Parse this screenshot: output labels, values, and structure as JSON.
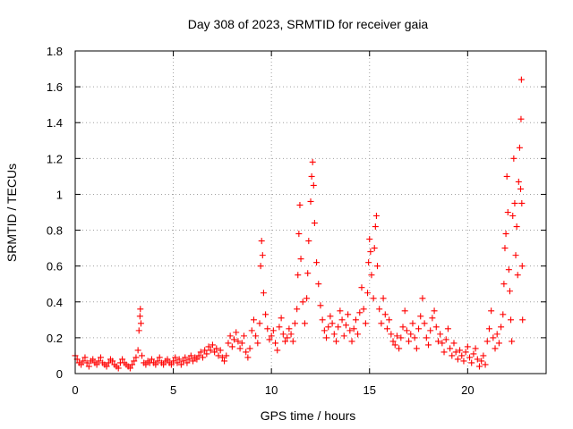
{
  "chart_data": {
    "type": "scatter",
    "title": "Day 308 of 2023, SRMTID for receiver gaia",
    "xlabel": "GPS time / hours",
    "ylabel": "SRMTID / TECUs",
    "xlim": [
      0,
      24
    ],
    "ylim": [
      0,
      1.8
    ],
    "x_ticks": [
      0,
      5,
      10,
      15,
      20
    ],
    "x_tick_labels": [
      "0",
      "5",
      "10",
      "15",
      "20"
    ],
    "y_ticks": [
      0,
      0.2,
      0.4,
      0.6,
      0.8,
      1.0,
      1.2,
      1.4,
      1.6,
      1.8
    ],
    "y_tick_labels": [
      "0",
      "0.2",
      "0.4",
      "0.6",
      "0.8",
      "1",
      "1.2",
      "1.4",
      "1.6",
      "1.8"
    ],
    "grid": true,
    "marker": "plus",
    "color": "#ff0000",
    "series": [
      {
        "name": "SRMTID",
        "points": [
          [
            0.0,
            0.1
          ],
          [
            0.1,
            0.08
          ],
          [
            0.2,
            0.06
          ],
          [
            0.3,
            0.05
          ],
          [
            0.4,
            0.07
          ],
          [
            0.5,
            0.09
          ],
          [
            0.6,
            0.06
          ],
          [
            0.7,
            0.04
          ],
          [
            0.8,
            0.07
          ],
          [
            0.9,
            0.08
          ],
          [
            1.0,
            0.06
          ],
          [
            1.1,
            0.05
          ],
          [
            1.2,
            0.07
          ],
          [
            1.3,
            0.09
          ],
          [
            1.4,
            0.06
          ],
          [
            1.5,
            0.05
          ],
          [
            1.6,
            0.04
          ],
          [
            1.7,
            0.06
          ],
          [
            1.8,
            0.08
          ],
          [
            1.9,
            0.07
          ],
          [
            2.0,
            0.05
          ],
          [
            2.1,
            0.04
          ],
          [
            2.2,
            0.03
          ],
          [
            2.3,
            0.06
          ],
          [
            2.4,
            0.08
          ],
          [
            2.5,
            0.06
          ],
          [
            2.6,
            0.05
          ],
          [
            2.7,
            0.04
          ],
          [
            2.8,
            0.03
          ],
          [
            2.9,
            0.05
          ],
          [
            3.0,
            0.07
          ],
          [
            3.1,
            0.09
          ],
          [
            3.2,
            0.13
          ],
          [
            3.25,
            0.24
          ],
          [
            3.3,
            0.32
          ],
          [
            3.32,
            0.36
          ],
          [
            3.35,
            0.28
          ],
          [
            3.4,
            0.1
          ],
          [
            3.5,
            0.06
          ],
          [
            3.6,
            0.05
          ],
          [
            3.7,
            0.07
          ],
          [
            3.8,
            0.06
          ],
          [
            3.9,
            0.08
          ],
          [
            4.0,
            0.06
          ],
          [
            4.1,
            0.05
          ],
          [
            4.2,
            0.07
          ],
          [
            4.3,
            0.09
          ],
          [
            4.4,
            0.06
          ],
          [
            4.5,
            0.05
          ],
          [
            4.6,
            0.07
          ],
          [
            4.7,
            0.08
          ],
          [
            4.8,
            0.06
          ],
          [
            4.9,
            0.05
          ],
          [
            5.0,
            0.07
          ],
          [
            5.1,
            0.09
          ],
          [
            5.2,
            0.06
          ],
          [
            5.3,
            0.08
          ],
          [
            5.4,
            0.05
          ],
          [
            5.5,
            0.07
          ],
          [
            5.6,
            0.09
          ],
          [
            5.7,
            0.06
          ],
          [
            5.8,
            0.08
          ],
          [
            5.9,
            0.1
          ],
          [
            6.0,
            0.07
          ],
          [
            6.1,
            0.09
          ],
          [
            6.2,
            0.08
          ],
          [
            6.3,
            0.1
          ],
          [
            6.4,
            0.12
          ],
          [
            6.5,
            0.09
          ],
          [
            6.6,
            0.13
          ],
          [
            6.7,
            0.11
          ],
          [
            6.8,
            0.15
          ],
          [
            6.9,
            0.13
          ],
          [
            7.0,
            0.16
          ],
          [
            7.1,
            0.12
          ],
          [
            7.2,
            0.14
          ],
          [
            7.3,
            0.1
          ],
          [
            7.4,
            0.13
          ],
          [
            7.5,
            0.09
          ],
          [
            7.6,
            0.07
          ],
          [
            7.7,
            0.1
          ],
          [
            7.8,
            0.17
          ],
          [
            7.9,
            0.21
          ],
          [
            8.0,
            0.15
          ],
          [
            8.1,
            0.19
          ],
          [
            8.2,
            0.23
          ],
          [
            8.3,
            0.18
          ],
          [
            8.4,
            0.14
          ],
          [
            8.5,
            0.17
          ],
          [
            8.6,
            0.21
          ],
          [
            8.7,
            0.12
          ],
          [
            8.8,
            0.09
          ],
          [
            8.9,
            0.14
          ],
          [
            9.0,
            0.24
          ],
          [
            9.1,
            0.3
          ],
          [
            9.2,
            0.21
          ],
          [
            9.3,
            0.17
          ],
          [
            9.4,
            0.28
          ],
          [
            9.45,
            0.6
          ],
          [
            9.5,
            0.74
          ],
          [
            9.55,
            0.66
          ],
          [
            9.6,
            0.45
          ],
          [
            9.7,
            0.33
          ],
          [
            9.8,
            0.25
          ],
          [
            9.9,
            0.19
          ],
          [
            10.0,
            0.21
          ],
          [
            10.1,
            0.24
          ],
          [
            10.2,
            0.17
          ],
          [
            10.3,
            0.13
          ],
          [
            10.4,
            0.26
          ],
          [
            10.5,
            0.31
          ],
          [
            10.6,
            0.22
          ],
          [
            10.7,
            0.18
          ],
          [
            10.8,
            0.2
          ],
          [
            10.9,
            0.25
          ],
          [
            11.0,
            0.22
          ],
          [
            11.1,
            0.18
          ],
          [
            11.2,
            0.28
          ],
          [
            11.3,
            0.36
          ],
          [
            11.35,
            0.55
          ],
          [
            11.4,
            0.78
          ],
          [
            11.45,
            0.94
          ],
          [
            11.5,
            0.64
          ],
          [
            11.6,
            0.4
          ],
          [
            11.7,
            0.28
          ],
          [
            11.8,
            0.42
          ],
          [
            11.85,
            0.56
          ],
          [
            11.9,
            0.74
          ],
          [
            12.0,
            0.96
          ],
          [
            12.05,
            1.1
          ],
          [
            12.1,
            1.18
          ],
          [
            12.15,
            1.05
          ],
          [
            12.2,
            0.84
          ],
          [
            12.3,
            0.62
          ],
          [
            12.4,
            0.5
          ],
          [
            12.5,
            0.38
          ],
          [
            12.6,
            0.3
          ],
          [
            12.7,
            0.24
          ],
          [
            12.8,
            0.2
          ],
          [
            12.9,
            0.26
          ],
          [
            13.0,
            0.32
          ],
          [
            13.1,
            0.28
          ],
          [
            13.2,
            0.22
          ],
          [
            13.3,
            0.18
          ],
          [
            13.4,
            0.26
          ],
          [
            13.5,
            0.35
          ],
          [
            13.6,
            0.3
          ],
          [
            13.7,
            0.21
          ],
          [
            13.8,
            0.27
          ],
          [
            13.9,
            0.33
          ],
          [
            14.0,
            0.24
          ],
          [
            14.1,
            0.18
          ],
          [
            14.2,
            0.25
          ],
          [
            14.3,
            0.3
          ],
          [
            14.4,
            0.22
          ],
          [
            14.5,
            0.34
          ],
          [
            14.6,
            0.48
          ],
          [
            14.7,
            0.36
          ],
          [
            14.8,
            0.28
          ],
          [
            14.9,
            0.45
          ],
          [
            14.95,
            0.62
          ],
          [
            15.0,
            0.75
          ],
          [
            15.05,
            0.68
          ],
          [
            15.1,
            0.55
          ],
          [
            15.2,
            0.42
          ],
          [
            15.25,
            0.7
          ],
          [
            15.3,
            0.82
          ],
          [
            15.35,
            0.88
          ],
          [
            15.4,
            0.6
          ],
          [
            15.5,
            0.36
          ],
          [
            15.6,
            0.28
          ],
          [
            15.7,
            0.42
          ],
          [
            15.8,
            0.33
          ],
          [
            15.9,
            0.25
          ],
          [
            16.0,
            0.3
          ],
          [
            16.1,
            0.22
          ],
          [
            16.2,
            0.18
          ],
          [
            16.3,
            0.16
          ],
          [
            16.4,
            0.21
          ],
          [
            16.5,
            0.14
          ],
          [
            16.6,
            0.2
          ],
          [
            16.7,
            0.26
          ],
          [
            16.8,
            0.35
          ],
          [
            16.9,
            0.24
          ],
          [
            17.0,
            0.18
          ],
          [
            17.1,
            0.22
          ],
          [
            17.2,
            0.28
          ],
          [
            17.3,
            0.2
          ],
          [
            17.4,
            0.14
          ],
          [
            17.5,
            0.25
          ],
          [
            17.6,
            0.32
          ],
          [
            17.7,
            0.42
          ],
          [
            17.8,
            0.28
          ],
          [
            17.9,
            0.2
          ],
          [
            18.0,
            0.16
          ],
          [
            18.1,
            0.24
          ],
          [
            18.2,
            0.31
          ],
          [
            18.3,
            0.35
          ],
          [
            18.4,
            0.26
          ],
          [
            18.5,
            0.18
          ],
          [
            18.6,
            0.22
          ],
          [
            18.7,
            0.17
          ],
          [
            18.8,
            0.12
          ],
          [
            18.9,
            0.19
          ],
          [
            19.0,
            0.25
          ],
          [
            19.1,
            0.14
          ],
          [
            19.2,
            0.1
          ],
          [
            19.3,
            0.17
          ],
          [
            19.4,
            0.12
          ],
          [
            19.5,
            0.08
          ],
          [
            19.6,
            0.13
          ],
          [
            19.7,
            0.1
          ],
          [
            19.8,
            0.07
          ],
          [
            19.9,
            0.12
          ],
          [
            20.0,
            0.15
          ],
          [
            20.1,
            0.09
          ],
          [
            20.2,
            0.06
          ],
          [
            20.3,
            0.11
          ],
          [
            20.4,
            0.14
          ],
          [
            20.5,
            0.08
          ],
          [
            20.6,
            0.04
          ],
          [
            20.7,
            0.07
          ],
          [
            20.8,
            0.1
          ],
          [
            20.9,
            0.05
          ],
          [
            21.0,
            0.18
          ],
          [
            21.1,
            0.25
          ],
          [
            21.2,
            0.35
          ],
          [
            21.3,
            0.2
          ],
          [
            21.4,
            0.14
          ],
          [
            21.5,
            0.22
          ],
          [
            21.6,
            0.17
          ],
          [
            21.7,
            0.26
          ],
          [
            21.8,
            0.33
          ],
          [
            21.85,
            0.5
          ],
          [
            21.9,
            0.7
          ],
          [
            21.95,
            0.78
          ],
          [
            22.0,
            1.1
          ],
          [
            22.05,
            0.9
          ],
          [
            22.1,
            0.58
          ],
          [
            22.15,
            0.46
          ],
          [
            22.2,
            0.3
          ],
          [
            22.25,
            0.18
          ],
          [
            22.3,
            0.88
          ],
          [
            22.35,
            1.2
          ],
          [
            22.4,
            0.95
          ],
          [
            22.45,
            0.66
          ],
          [
            22.5,
            0.82
          ],
          [
            22.55,
            0.55
          ],
          [
            22.6,
            1.07
          ],
          [
            22.65,
            1.26
          ],
          [
            22.7,
            1.03
          ],
          [
            22.72,
            1.42
          ],
          [
            22.74,
            1.64
          ],
          [
            22.76,
            0.95
          ],
          [
            22.78,
            0.6
          ],
          [
            22.8,
            0.3
          ]
        ]
      }
    ]
  }
}
